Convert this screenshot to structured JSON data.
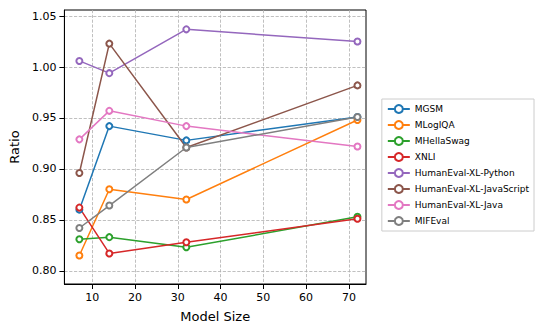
{
  "chart_data": {
    "type": "line",
    "x_label": "Model Size",
    "y_label": "Ratio",
    "x": [
      7,
      14,
      32,
      72
    ],
    "series": [
      {
        "name": "MGSM",
        "color": "#1f77b4",
        "values": [
          0.86,
          0.942,
          0.928,
          0.951
        ]
      },
      {
        "name": "MLogIQA",
        "color": "#ff7f0e",
        "values": [
          0.815,
          0.88,
          0.87,
          0.948
        ]
      },
      {
        "name": "MHellaSwag",
        "color": "#2ca02c",
        "values": [
          0.831,
          0.833,
          0.823,
          0.853
        ]
      },
      {
        "name": "XNLI",
        "color": "#d62728",
        "values": [
          0.862,
          0.817,
          0.828,
          0.851
        ]
      },
      {
        "name": "HumanEval-XL-Python",
        "color": "#9467bd",
        "values": [
          1.006,
          0.994,
          1.037,
          1.025
        ]
      },
      {
        "name": "HumanEval-XL-JavaScript",
        "color": "#8c564b",
        "values": [
          0.896,
          1.023,
          0.921,
          0.982
        ]
      },
      {
        "name": "HumanEval-XL-Java",
        "color": "#e377c2",
        "values": [
          0.929,
          0.957,
          0.942,
          0.922
        ]
      },
      {
        "name": "MIFEval",
        "color": "#7f7f7f",
        "values": [
          0.842,
          0.864,
          0.921,
          0.951
        ]
      }
    ],
    "xlim": [
      3.5,
      74
    ],
    "xticks": [
      10,
      20,
      30,
      40,
      50,
      60,
      70
    ],
    "ylim": [
      0.787,
      1.056
    ],
    "yticks": [
      {
        "value": 0.8,
        "label": "0.80"
      },
      {
        "value": 0.85,
        "label": "0.85"
      },
      {
        "value": 0.9,
        "label": "0.90"
      },
      {
        "value": 0.95,
        "label": "0.95"
      },
      {
        "value": 1.0,
        "label": "1.00"
      },
      {
        "value": 1.05,
        "label": "1.05"
      }
    ],
    "grid": true,
    "legend": "right",
    "marker": "circle"
  }
}
